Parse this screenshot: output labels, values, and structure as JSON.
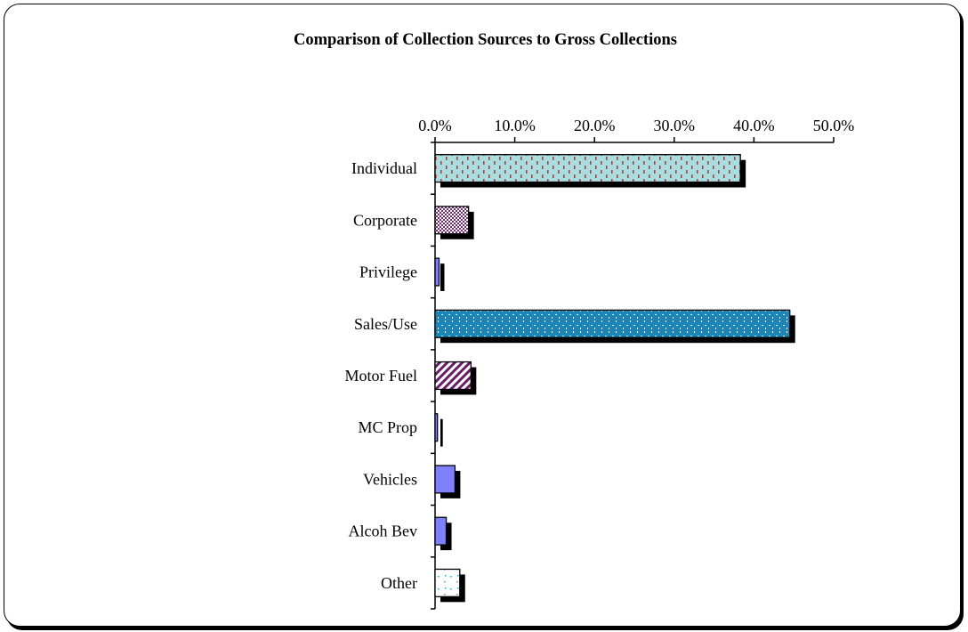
{
  "chart_data": {
    "type": "bar",
    "orientation": "horizontal",
    "title": "Comparison of Collection Sources to Gross Collections",
    "xlabel": "",
    "ylabel": "",
    "xlim": [
      0,
      50
    ],
    "x_tick_labels": [
      "0.0%",
      "10.0%",
      "20.0%",
      "30.0%",
      "40.0%",
      "50.0%"
    ],
    "x_ticks": [
      0,
      10,
      20,
      30,
      40,
      50
    ],
    "categories": [
      "Individual",
      "Corporate",
      "Privilege",
      "Sales/Use",
      "Motor Fuel",
      "MC Prop",
      "Vehicles",
      "Alcoh Bev",
      "Other"
    ],
    "values": [
      38.3,
      4.2,
      0.5,
      44.5,
      4.5,
      0.3,
      2.5,
      1.4,
      3.1
    ],
    "fills": [
      "dotted-red-on-teal",
      "checker-purple",
      "solid-periwinkle",
      "dotted-white-on-blue",
      "diagonal-purple",
      "solid-periwinkle",
      "solid-periwinkle",
      "solid-periwinkle",
      "sparse-cyan-on-white"
    ],
    "grid": false,
    "legend": "none",
    "axis_position": "top"
  }
}
